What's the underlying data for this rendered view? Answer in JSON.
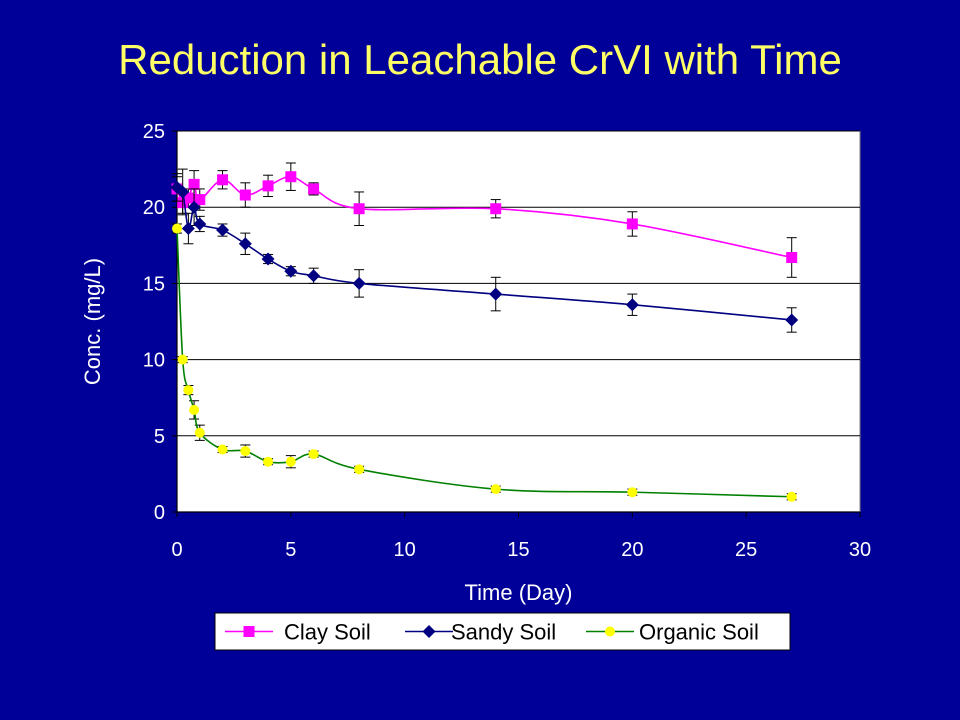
{
  "colors": {
    "background": "#000099",
    "title": "#FFFF66",
    "plot_area": "#FFFFFF",
    "gridline": "#000000",
    "axis_text": "#FFFFFF"
  },
  "chart_data": {
    "type": "line",
    "title": "Reduction in Leachable CrVI with Time",
    "xlabel": "Time (Day)",
    "ylabel": "Conc. (mg/L)",
    "xlim": [
      0,
      30
    ],
    "ylim": [
      0,
      25
    ],
    "xticks": [
      0,
      5,
      10,
      15,
      20,
      25,
      30
    ],
    "yticks": [
      0,
      5,
      10,
      15,
      20,
      25
    ],
    "grid": "horizontal",
    "legend": "bottom",
    "series": [
      {
        "name": "Clay Soil",
        "color": "#FF00FF",
        "marker": "square",
        "x": [
          0,
          0.25,
          0.5,
          0.75,
          1,
          2,
          3,
          4,
          5,
          6,
          8,
          14,
          20,
          27
        ],
        "y": [
          21.2,
          20.3,
          20.6,
          21.5,
          20.5,
          21.8,
          20.8,
          21.4,
          22.0,
          21.2,
          19.9,
          19.9,
          18.9,
          16.7
        ],
        "err": [
          0.8,
          0.7,
          0.6,
          0.9,
          0.7,
          0.6,
          0.8,
          0.7,
          0.9,
          0.4,
          1.1,
          0.6,
          0.8,
          1.3
        ]
      },
      {
        "name": "Sandy Soil",
        "color": "#000080",
        "marker": "diamond",
        "x": [
          0,
          0.25,
          0.5,
          0.75,
          1,
          2,
          3,
          4,
          5,
          6,
          8,
          14,
          20,
          27
        ],
        "y": [
          21.3,
          21.0,
          18.6,
          20.0,
          18.9,
          18.5,
          17.6,
          16.6,
          15.8,
          15.5,
          15.0,
          14.3,
          13.6,
          12.6
        ],
        "err": [
          0.9,
          1.5,
          1.0,
          1.2,
          0.5,
          0.4,
          0.7,
          0.3,
          0.3,
          0.5,
          0.9,
          1.1,
          0.7,
          0.8
        ]
      },
      {
        "name": "Organic Soil",
        "color": "#008000",
        "marker_color": "#FFFF00",
        "marker": "circle",
        "x": [
          0,
          0.25,
          0.5,
          0.75,
          1,
          2,
          3,
          4,
          5,
          6,
          8,
          14,
          20,
          27
        ],
        "y": [
          18.6,
          10.0,
          8.0,
          6.7,
          5.2,
          4.1,
          4.0,
          3.3,
          3.3,
          3.8,
          2.8,
          1.5,
          1.3,
          1.0
        ],
        "err": [
          0.3,
          0.2,
          0.3,
          0.6,
          0.5,
          0.2,
          0.4,
          0.2,
          0.4,
          0.2,
          0.2,
          0.2,
          0.2,
          0.2
        ]
      }
    ]
  }
}
